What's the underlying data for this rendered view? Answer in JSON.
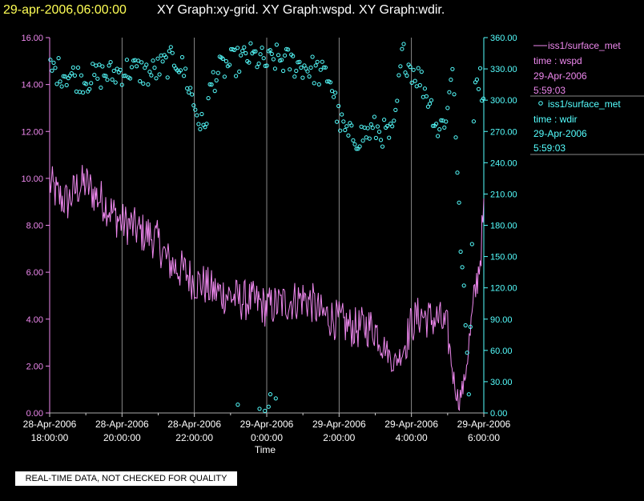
{
  "header": {
    "date_text": "29-apr-2006,06:00:00",
    "graphs_text": "XY Graph:xy-grid.  XY Graph:wspd.  XY Graph:wdir."
  },
  "colors": {
    "wspd": "#ee88ee",
    "wdir": "#55ffff",
    "grid": "#aaaaaa",
    "background": "#000000"
  },
  "legend": [
    {
      "symbol": "line",
      "source": "iss1/surface_met",
      "var": "time : wspd",
      "date": "29-Apr-2006",
      "time": "5:59:03"
    },
    {
      "symbol": "circle",
      "source": "iss1/surface_met",
      "var": "time : wdir",
      "date": "29-Apr-2006",
      "time": "5:59:03"
    }
  ],
  "chart_data": {
    "type": "line",
    "title": "XY Graph:xy-grid.  XY Graph:wspd.  XY Graph:wdir.",
    "xlabel": "Time",
    "xlim_hours": [
      0,
      12
    ],
    "x_ticks": [
      {
        "h": 0,
        "date": "28-Apr-2006",
        "time": "18:00:00"
      },
      {
        "h": 2,
        "date": "28-Apr-2006",
        "time": "20:00:00"
      },
      {
        "h": 4,
        "date": "28-Apr-2006",
        "time": "22:00:00"
      },
      {
        "h": 6,
        "date": "29-Apr-2006",
        "time": "0:00:00"
      },
      {
        "h": 8,
        "date": "29-Apr-2006",
        "time": "2:00:00"
      },
      {
        "h": 10,
        "date": "29-Apr-2006",
        "time": "4:00:00"
      },
      {
        "h": 12,
        "date": "29-Apr-2006",
        "time": "6:00:00"
      }
    ],
    "left_axis": {
      "name": "wspd",
      "ylim": [
        0,
        16
      ],
      "ticks": [
        "0.00",
        "2.00",
        "4.00",
        "6.00",
        "8.00",
        "10.00",
        "12.00",
        "14.00",
        "16.00"
      ]
    },
    "right_axis": {
      "name": "wdir",
      "ylim": [
        0,
        360
      ],
      "ticks": [
        "0.00",
        "30.00",
        "60.00",
        "90.00",
        "120.00",
        "150.00",
        "180.00",
        "210.00",
        "240.00",
        "270.00",
        "300.00",
        "330.00",
        "360.00"
      ]
    },
    "series": [
      {
        "name": "iss1/surface_met time : wspd",
        "style": "line",
        "axis": "left",
        "x": [
          0,
          0.25,
          0.5,
          0.75,
          1,
          1.25,
          1.5,
          1.75,
          2,
          2.25,
          2.5,
          2.75,
          3,
          3.25,
          3.5,
          3.75,
          4,
          4.25,
          4.5,
          4.75,
          5,
          5.25,
          5.5,
          5.75,
          6,
          6.25,
          6.5,
          6.75,
          7,
          7.25,
          7.5,
          7.75,
          8,
          8.25,
          8.5,
          8.75,
          9,
          9.25,
          9.5,
          9.75,
          10,
          10.25,
          10.5,
          10.75,
          11,
          11.15,
          11.3,
          11.45,
          11.6,
          11.75,
          11.9,
          12
        ],
        "y": [
          9.8,
          9.2,
          9.0,
          9.6,
          9.8,
          9.3,
          9.0,
          8.5,
          8.1,
          8.0,
          7.7,
          7.6,
          7.3,
          6.5,
          6.2,
          6.0,
          5.6,
          5.5,
          5.2,
          5.1,
          5.0,
          4.8,
          4.8,
          4.7,
          4.5,
          4.6,
          4.7,
          4.8,
          4.9,
          4.7,
          4.2,
          4.1,
          3.9,
          3.7,
          3.6,
          3.7,
          3.6,
          2.9,
          2.1,
          2.6,
          3.8,
          4.2,
          4.0,
          4.0,
          3.5,
          1.6,
          0.5,
          1.2,
          3.0,
          5.0,
          6.6,
          8.6
        ]
      },
      {
        "name": "iss1/surface_met time : wdir",
        "style": "scatter",
        "axis": "right",
        "x": [
          0,
          0.25,
          0.5,
          0.75,
          1,
          1.25,
          1.5,
          1.75,
          2,
          2.25,
          2.5,
          2.75,
          3,
          3.25,
          3.5,
          3.75,
          4,
          4.25,
          4.5,
          4.75,
          5,
          5.25,
          5.5,
          5.75,
          6,
          6.25,
          6.5,
          6.75,
          7,
          7.25,
          7.5,
          7.75,
          8,
          8.25,
          8.5,
          8.75,
          9,
          9.25,
          9.5,
          9.75,
          10,
          10.25,
          10.5,
          10.75,
          11,
          11.15,
          11.3,
          11.45,
          11.6,
          11.75,
          11.9,
          12
        ],
        "y": [
          330,
          328,
          325,
          322,
          320,
          322,
          325,
          325,
          328,
          330,
          328,
          325,
          330,
          335,
          340,
          325,
          295,
          270,
          320,
          330,
          335,
          338,
          342,
          340,
          335,
          340,
          338,
          335,
          333,
          330,
          325,
          322,
          280,
          265,
          265,
          268,
          272,
          268,
          265,
          345,
          330,
          320,
          300,
          270,
          290,
          340,
          200,
          110,
          20,
          330,
          320,
          305
        ]
      }
    ]
  },
  "notice": "REAL-TIME DATA, NOT CHECKED FOR QUALITY"
}
